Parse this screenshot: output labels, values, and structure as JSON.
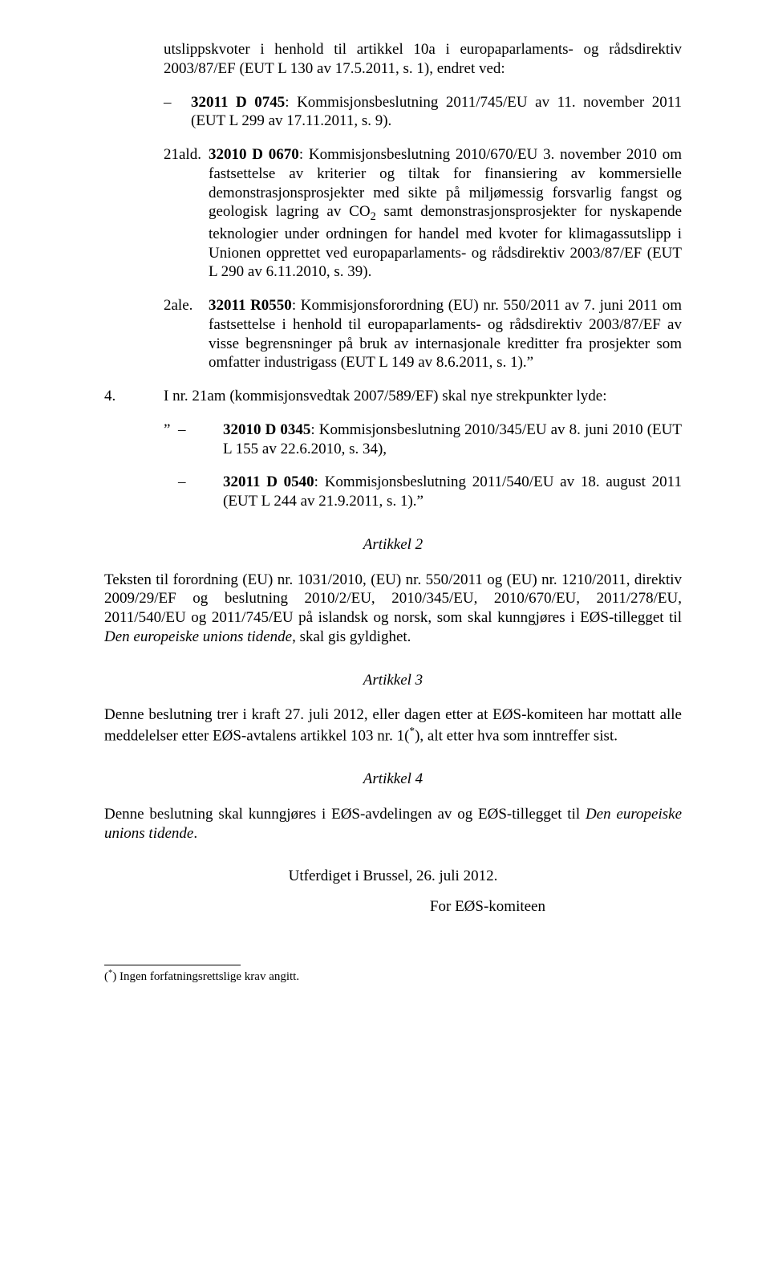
{
  "colors": {
    "background": "#ffffff",
    "text": "#000000"
  },
  "typography": {
    "font_family": "Times New Roman",
    "base_font_size_pt": 14,
    "footnote_font_size_pt": 11
  },
  "intro_para": "utslippskvoter i henhold til artikkel 10a i europaparlaments- og rådsdirektiv 2003/87/EF (EUT L 130 av 17.5.2011, s. 1), endret ved:",
  "dash_1": {
    "dash": "–",
    "body_a": "32011 D 0745",
    "body_b": ": Kommisjonsbeslutning 2011/745/EU av 11. november 2011 (EUT L 299 av 17.11.2011, s. 9)."
  },
  "item_21ald": {
    "label": "21ald.",
    "bold": "32010 D 0670",
    "body_a": ": Kommisjonsbeslutning 2010/670/EU 3. november 2010 om fastsettelse av kriterier og tiltak for finansiering av kommersielle demonstrasjonsprosjekter med sikte på miljømessig forsvarlig fangst og geologisk lagring av CO",
    "sub": "2",
    "body_b": " samt demonstrasjonsprosjekter for nyskapende teknologier under ordningen for handel med kvoter for klimagassutslipp i Unionen opprettet ved europaparlaments- og rådsdirektiv 2003/87/EF (EUT L 290 av 6.11.2010, s. 39)."
  },
  "item_2ale": {
    "label": "2ale.",
    "bold": "32011 R0550",
    "body": ": Kommisjonsforordning (EU) nr. 550/2011 av 7. juni 2011 om fastsettelse i henhold til europaparlaments- og rådsdirektiv 2003/87/EF av visse begrensninger på bruk av internasjonale kreditter fra prosjekter som omfatter industrigass (EUT L 149 av 8.6.2011, s. 1).”"
  },
  "item_4": {
    "num": "4.",
    "body": "I nr. 21am (kommisjonsvedtak 2007/589/EF) skal nye strekpunkter lyde:"
  },
  "quote_1": {
    "open": "”",
    "dash": "–",
    "bold": "32010 D 0345",
    "body": ": Kommisjonsbeslutning 2010/345/EU av 8. juni 2010 (EUT L 155 av 22.6.2010, s. 34),"
  },
  "quote_2": {
    "dash": "–",
    "bold": "32011 D 0540",
    "body": ": Kommisjonsbeslutning 2011/540/EU av 18. august 2011 (EUT L 244 av 21.9.2011, s. 1).”"
  },
  "article2_header": "Artikkel 2",
  "article2_body_a": "Teksten til forordning (EU) nr. 1031/2010, (EU) nr. 550/2011 og (EU) nr. 1210/2011, direktiv 2009/29/EF og beslutning 2010/2/EU, 2010/345/EU, 2010/670/EU, 2011/278/EU, 2011/540/EU og 2011/745/EU på islandsk og norsk, som skal kunngjøres i EØS-tillegget til ",
  "article2_italic": "Den europeiske unions tidende",
  "article2_body_b": ", skal gis gyldighet.",
  "article3_header": "Artikkel 3",
  "article3_body_a": "Denne beslutning trer i kraft 27. juli 2012, eller dagen etter at EØS-komiteen har mottatt alle meddelelser etter EØS-avtalens artikkel 103 nr. 1(",
  "article3_sup": "*",
  "article3_body_b": "), alt etter hva som inntreffer sist.",
  "article4_header": "Artikkel 4",
  "article4_body_a": "Denne beslutning skal kunngjøres i EØS-avdelingen av og EØS-tillegget til ",
  "article4_italic": "Den europeiske unions tidende",
  "article4_body_b": ".",
  "signature_place": "Utferdiget i Brussel, 26. juli 2012.",
  "for_line": "For EØS-komiteen",
  "footnote": {
    "mark": "*",
    "text": " Ingen forfatningsrettslige krav angitt."
  }
}
